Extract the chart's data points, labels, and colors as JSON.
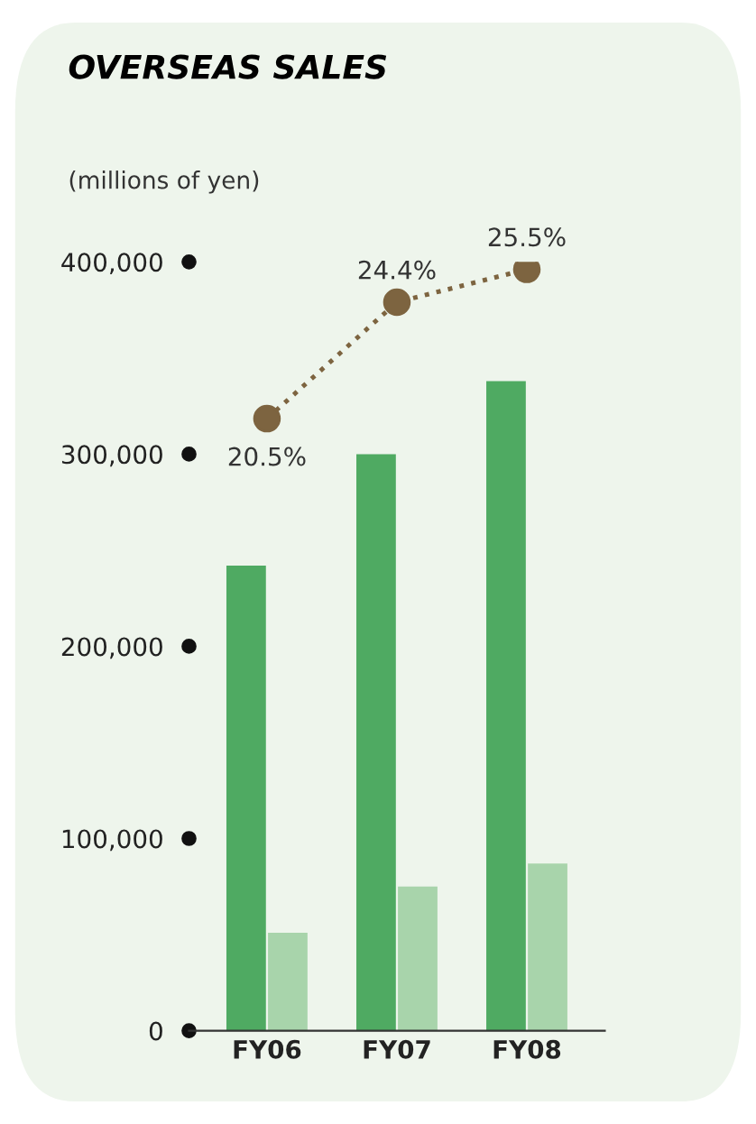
{
  "chart_data": {
    "type": "bar",
    "title": "OVERSEAS SALES",
    "ylabel": "(millions of yen)",
    "categories": [
      "FY06",
      "FY07",
      "FY08"
    ],
    "series": [
      {
        "color": "#4faa62",
        "values": [
          242000,
          300000,
          338000
        ]
      },
      {
        "color": "#a8d4ab",
        "values": [
          51000,
          75000,
          87000
        ]
      },
      {
        "type": "line",
        "axis": "y2",
        "color": "#7d6440",
        "values": [
          20.5,
          24.4,
          25.5
        ],
        "marker": "circle",
        "line_style": "dotted",
        "value_labels": [
          "20.5%",
          "24.4%",
          "25.5%"
        ]
      }
    ],
    "ylim": [
      0,
      400000
    ],
    "yticks": [
      {
        "value": 0,
        "label": "0"
      },
      {
        "value": 100000,
        "label": "100,000"
      },
      {
        "value": 200000,
        "label": "200,000"
      },
      {
        "value": 300000,
        "label": "300,000"
      },
      {
        "value": 400000,
        "label": "400,000"
      }
    ],
    "grid": false,
    "legend": false
  }
}
